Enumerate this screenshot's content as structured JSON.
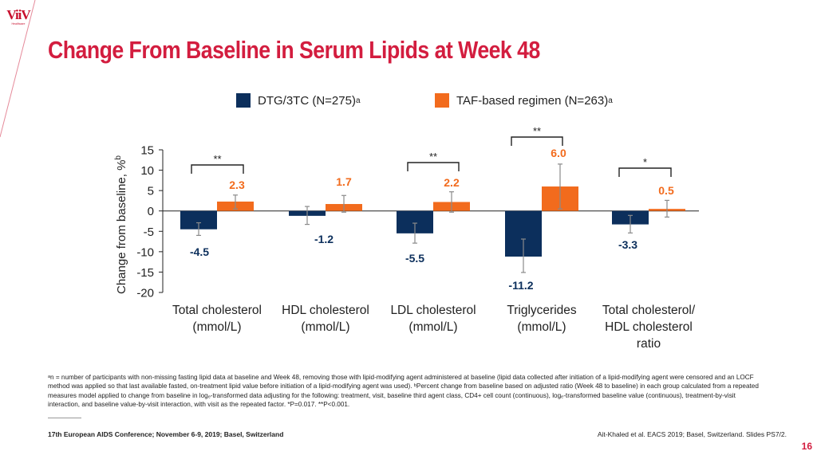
{
  "brand": {
    "logo_text": "ViiV",
    "logo_subtext": "Healthcare",
    "accent": "#d31d3f"
  },
  "title": "Change From Baseline in Serum Lipids at Week 48",
  "legend": [
    {
      "label": "DTG/3TC (N=275)",
      "sup": "a",
      "color": "#0c2f5c"
    },
    {
      "label": "TAF-based regimen (N=263)",
      "sup": "a",
      "color": "#f26b1d"
    }
  ],
  "chart_data": {
    "type": "bar",
    "ylabel": "Change from baseline, %",
    "ylabel_sup": "b",
    "ylim": [
      -20,
      15
    ],
    "yticks": [
      15,
      10,
      5,
      0,
      -5,
      -10,
      -15,
      -20
    ],
    "categories": [
      [
        "Total cholesterol",
        "(mmol/L)"
      ],
      [
        "HDL cholesterol",
        "(mmol/L)"
      ],
      [
        "LDL cholesterol",
        "(mmol/L)"
      ],
      [
        "Triglycerides",
        "(mmol/L)"
      ],
      [
        "Total cholesterol/",
        "HDL cholesterol",
        "ratio"
      ]
    ],
    "series": [
      {
        "name": "DTG/3TC (N=275)",
        "color": "#0c2f5c",
        "value_color": "#0c2f5c",
        "values": [
          -4.5,
          -1.2,
          -5.5,
          -11.2,
          -3.3
        ],
        "error_low": [
          -6.0,
          -3.3,
          -7.9,
          -15.1,
          -5.4
        ],
        "error_high": [
          -2.9,
          1.1,
          -3.0,
          -6.9,
          -1.1
        ]
      },
      {
        "name": "TAF-based regimen (N=263)",
        "color": "#f26b1d",
        "value_color": "#f26b1d",
        "values": [
          2.3,
          1.7,
          2.2,
          6.0,
          0.5
        ],
        "error_low": [
          0.5,
          -0.3,
          -0.3,
          0.5,
          -1.5
        ],
        "error_high": [
          3.9,
          3.8,
          4.7,
          11.5,
          2.6
        ]
      }
    ],
    "value_labels": [
      [
        "-4.5",
        "-1.2",
        "-5.5",
        "-11.2",
        "-3.3"
      ],
      [
        "2.3",
        "1.7",
        "2.2",
        "6.0",
        "0.5"
      ]
    ],
    "significance": [
      "**",
      null,
      "**",
      "**",
      "*"
    ]
  },
  "footnote_lines": [
    "ᵃn = number of participants with non-missing fasting lipid data at baseline and Week 48, removing those with lipid-modifying agent administered at baseline (lipid data collected after initiation of a lipid-modifying agent were censored and an LOCF",
    "method was applied so that last available fasted, on-treatment lipid value before initiation of a lipid-modifying agent was used). ᵇPercent change from baseline based on adjusted ratio (Week 48 to baseline) in each group calculated from a repeated",
    "measures model applied to change from baseline in logₑ-transformed data adjusting for the following: treatment, visit, baseline third agent class, CD4+ cell count (continuous), logₑ-transformed baseline value (continuous), treatment-by-visit",
    "interaction, and baseline value-by-visit interaction, with visit as the repeated factor. *P=0.017. **P<0.001."
  ],
  "conference": "17th European AIDS Conference; November 6-9, 2019; Basel, Switzerland",
  "reference": "Ait-Khaled et al. EACS 2019; Basel, Switzerland. Slides PS7/2.",
  "page_number": "16"
}
